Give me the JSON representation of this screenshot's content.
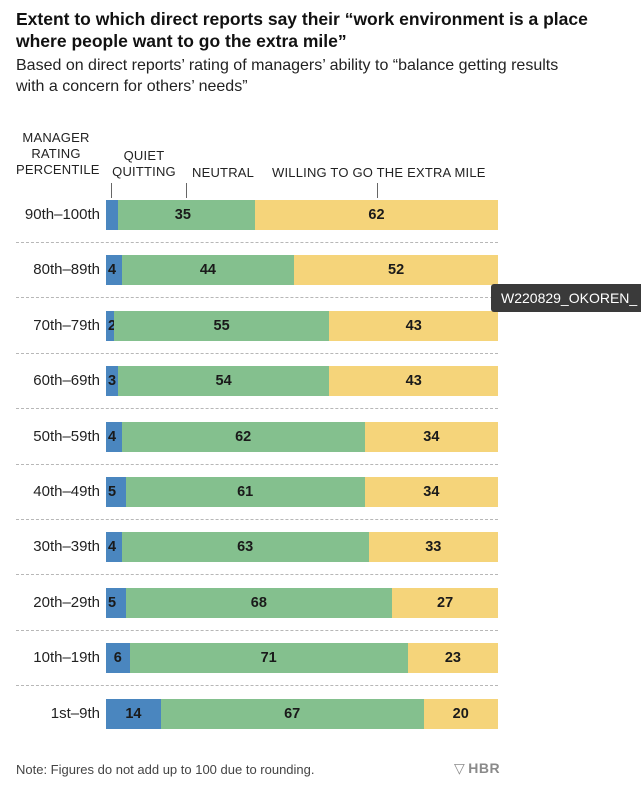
{
  "chart_data": {
    "type": "bar",
    "stacked": true,
    "orientation": "horizontal",
    "title": "Extent to which direct reports say their “work environment is a place where people want to go the extra mile”",
    "subtitle": "Based on direct reports’ rating of managers’ ability to “balance getting results with a concern for others’ needs”",
    "row_axis_label": "MANAGER RATING PERCENTILE",
    "categories": [
      "90th–100th",
      "80th–89th",
      "70th–79th",
      "60th–69th",
      "50th–59th",
      "40th–49th",
      "30th–39th",
      "20th–29th",
      "10th–19th",
      "1st–9th"
    ],
    "series": [
      {
        "name": "QUIET QUITTING",
        "color": "#4a86bf",
        "values": [
          3,
          4,
          2,
          3,
          4,
          5,
          4,
          5,
          6,
          14
        ]
      },
      {
        "name": "NEUTRAL",
        "color": "#84c08e",
        "values": [
          35,
          44,
          55,
          54,
          62,
          61,
          63,
          68,
          71,
          67
        ]
      },
      {
        "name": "WILLING TO GO THE EXTRA MILE",
        "color": "#f5d47a",
        "values": [
          62,
          52,
          43,
          43,
          34,
          34,
          33,
          27,
          23,
          20
        ]
      }
    ],
    "first_value_suffix": "%",
    "xlim": [
      0,
      100
    ]
  },
  "legend_headers": {
    "manager": "MANAGER RATING PERCENTILE",
    "quiet": "QUIET QUITTING",
    "neutral": "NEUTRAL",
    "willing": "WILLING TO GO THE EXTRA MILE"
  },
  "note": "Note: Figures do not add up to 100 due to rounding.",
  "brand": "HBR",
  "tooltip": "W220829_OKOREN_"
}
